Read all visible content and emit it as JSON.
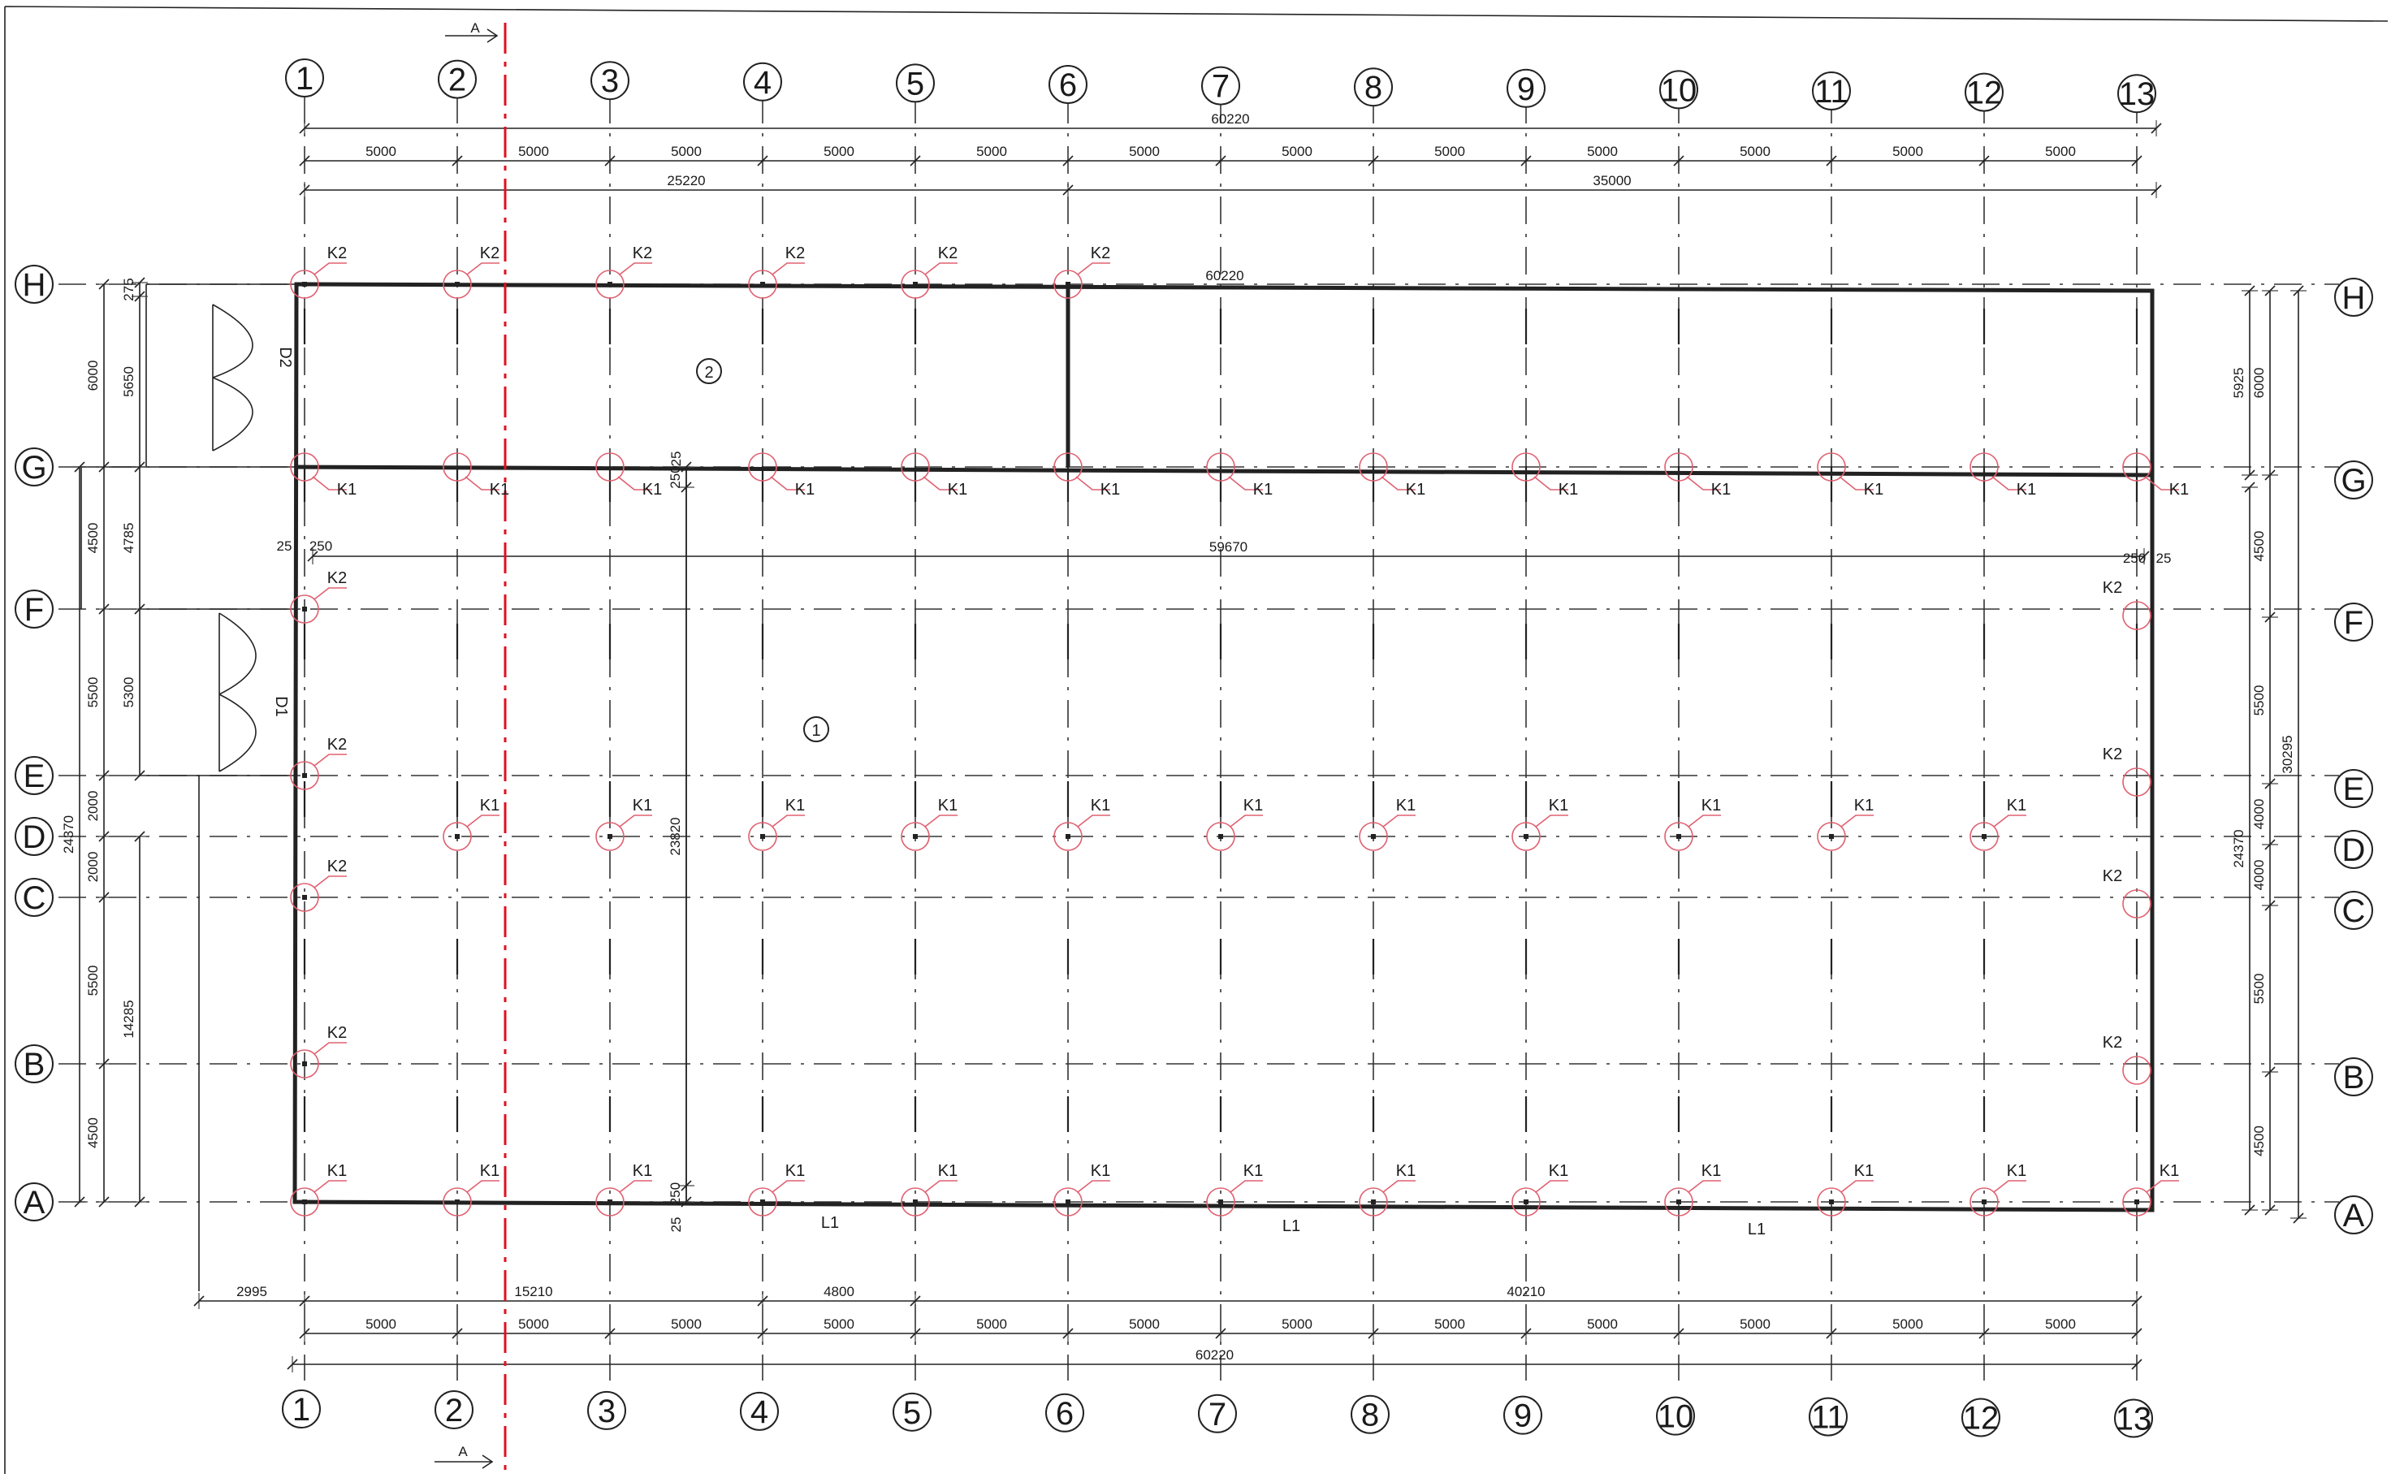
{
  "section_marker": "A",
  "column_axes": [
    "1",
    "2",
    "3",
    "4",
    "5",
    "6",
    "7",
    "8",
    "9",
    "10",
    "11",
    "12",
    "13"
  ],
  "row_axes": [
    "H",
    "G",
    "F",
    "E",
    "D",
    "C",
    "B",
    "A"
  ],
  "top_dims": {
    "overall": "60220",
    "spans": [
      "5000",
      "5000",
      "5000",
      "5000",
      "5000",
      "5000",
      "5000",
      "5000",
      "5000",
      "5000",
      "5000",
      "5000"
    ],
    "left_part": "25220",
    "right_part": "35000",
    "upper_wall": "60220",
    "inner": "59670",
    "edge_25_left": "25",
    "edge_250_left": "250",
    "edge_250_right": "250",
    "edge_25_right": "25"
  },
  "bottom_dims": {
    "offset": "2995",
    "seg1": "15210",
    "seg2": "4800",
    "seg3": "40210",
    "spans": [
      "5000",
      "5000",
      "5000",
      "5000",
      "5000",
      "5000",
      "5000",
      "5000",
      "5000",
      "5000",
      "5000",
      "5000"
    ],
    "overall": "60220"
  },
  "left_dims": {
    "outer_top": "275",
    "h_g_a": "6000",
    "h_g_b": "5650",
    "g_f_a": "4500",
    "g_f_b": "4785",
    "f_e_a": "5500",
    "f_e_b": "5300",
    "e_d": "2000",
    "d_c": "2000",
    "c_b": "5500",
    "b_a": "4500",
    "total": "24370",
    "lower_total": "14285"
  },
  "right_dims": {
    "h_g_a": "5925",
    "h_g_b": "6000",
    "g_f": "4500",
    "f_e": "5500",
    "e_d": "30295",
    "d_c": "4000",
    "c_b": "5500",
    "b_a": "4500",
    "total": "24370"
  },
  "interior_dims": {
    "v25_top": "25",
    "v250_top": "250",
    "v_mid": "23820",
    "v250_bot": "250",
    "v25_bot": "25"
  },
  "marks": {
    "k1": "K1",
    "k2": "K2",
    "l1": "L1",
    "d1": "D1",
    "d2": "D2",
    "room1": "1",
    "room2": "2"
  }
}
